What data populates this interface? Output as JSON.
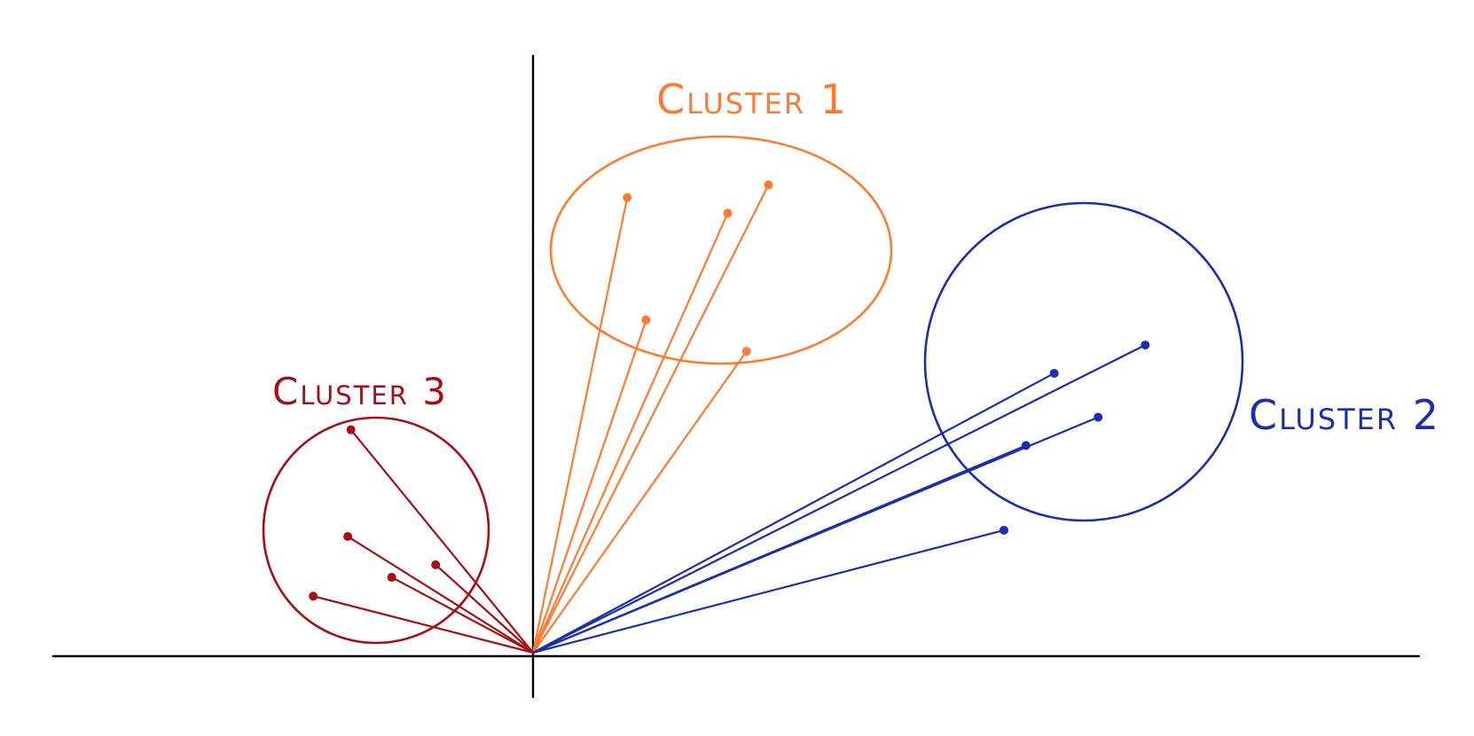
{
  "diagram": {
    "axes": {
      "color": "#000000"
    },
    "clusters": [
      {
        "id": "cluster-1",
        "label": "Cluster 1",
        "color": "#ff7a33",
        "points": [
          [
            0.3,
            1.45
          ],
          [
            0.36,
            1.06
          ],
          [
            0.62,
            1.4
          ],
          [
            0.75,
            1.49
          ],
          [
            0.68,
            0.96
          ]
        ]
      },
      {
        "id": "cluster-2",
        "label": "Cluster 2",
        "color": "#1a2fa8",
        "points": [
          [
            1.57,
            0.66
          ],
          [
            1.8,
            0.75
          ],
          [
            1.95,
            0.98
          ],
          [
            1.5,
            0.39
          ],
          [
            1.66,
            0.89
          ]
        ]
      },
      {
        "id": "cluster-3",
        "label": "Cluster 3",
        "color": "#a50f15",
        "points": [
          [
            -0.58,
            0.71
          ],
          [
            -0.59,
            0.37
          ],
          [
            -0.31,
            0.28
          ],
          [
            -0.45,
            0.24
          ],
          [
            -0.7,
            0.18
          ]
        ]
      }
    ]
  }
}
